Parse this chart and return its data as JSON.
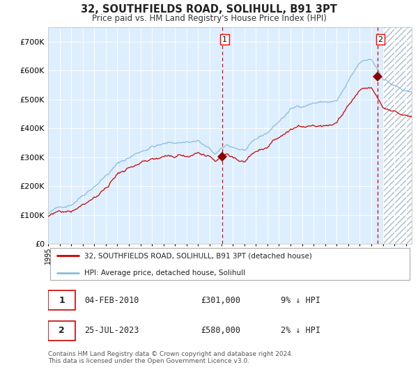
{
  "title": "32, SOUTHFIELDS ROAD, SOLIHULL, B91 3PT",
  "subtitle": "Price paid vs. HM Land Registry's House Price Index (HPI)",
  "xlim_start": 1995.0,
  "xlim_end": 2026.5,
  "ylim": [
    0,
    750000
  ],
  "yticks": [
    0,
    100000,
    200000,
    300000,
    400000,
    500000,
    600000,
    700000
  ],
  "ytick_labels": [
    "£0",
    "£100K",
    "£200K",
    "£300K",
    "£400K",
    "£500K",
    "£600K",
    "£700K"
  ],
  "hpi_color": "#8bbcdb",
  "price_color": "#cc0000",
  "vline_color": "#cc0000",
  "bg_color": "#ddeeff",
  "hatch_color": "#99aabb",
  "sale1_x": 2010.09,
  "sale1_y": 301000,
  "sale2_x": 2023.56,
  "sale2_y": 580000,
  "hatch_start": 2024.0,
  "legend_line1": "32, SOUTHFIELDS ROAD, SOLIHULL, B91 3PT (detached house)",
  "legend_line2": "HPI: Average price, detached house, Solihull",
  "table_row1": [
    "1",
    "04-FEB-2010",
    "£301,000",
    "9% ↓ HPI"
  ],
  "table_row2": [
    "2",
    "25-JUL-2023",
    "£580,000",
    "2% ↓ HPI"
  ],
  "footnote": "Contains HM Land Registry data © Crown copyright and database right 2024.\nThis data is licensed under the Open Government Licence v3.0.",
  "xticks": [
    1995,
    1996,
    1997,
    1998,
    1999,
    2000,
    2001,
    2002,
    2003,
    2004,
    2005,
    2006,
    2007,
    2008,
    2009,
    2010,
    2011,
    2012,
    2013,
    2014,
    2015,
    2016,
    2017,
    2018,
    2019,
    2020,
    2021,
    2022,
    2023,
    2024,
    2025,
    2026
  ]
}
